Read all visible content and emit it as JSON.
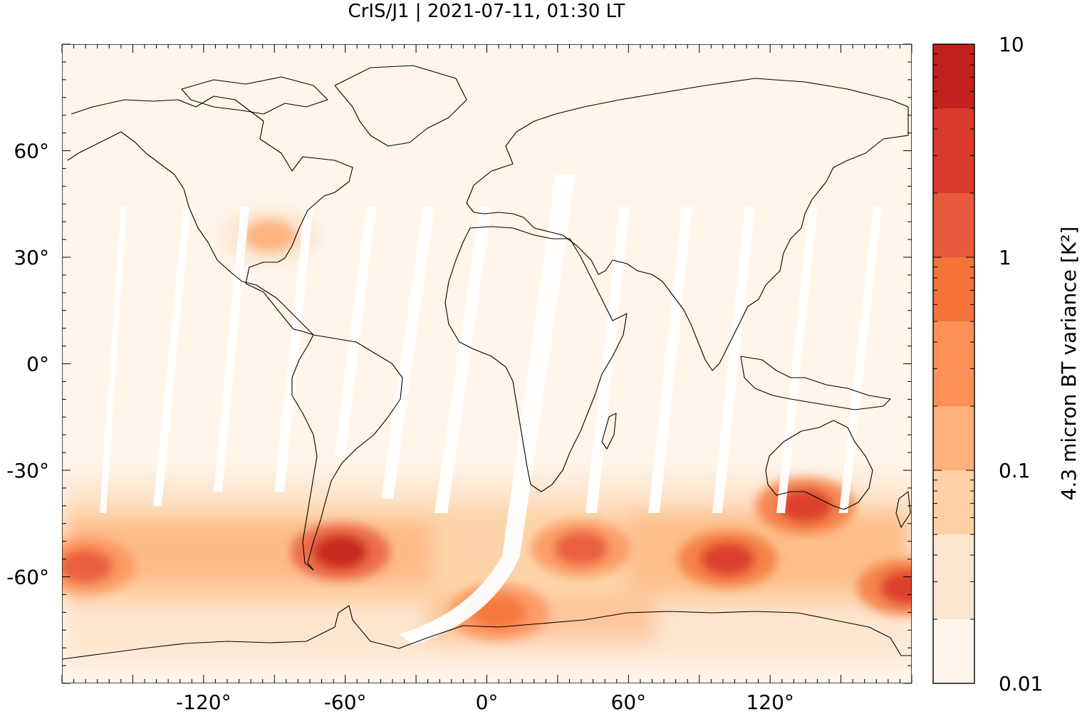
{
  "chart_data": {
    "type": "heatmap",
    "title": "CrIS/J1 | 2021-07-11, 01:30 LT",
    "projection": "equirectangular",
    "xlim": [
      -180,
      180
    ],
    "ylim": [
      -90,
      90
    ],
    "x_ticks": [
      -120,
      -60,
      0,
      60,
      120
    ],
    "x_tick_labels": [
      "-120°",
      "-60°",
      "0°",
      "60°",
      "120°"
    ],
    "y_ticks": [
      60,
      30,
      0,
      -30,
      -60
    ],
    "y_tick_labels": [
      "60°",
      "30°",
      "0°",
      "-30°",
      "-60°"
    ],
    "colorbar": {
      "label": "4.3 micron BT variance [K²]",
      "scale": "log",
      "range": [
        0.01,
        10
      ],
      "tick_values": [
        10,
        1,
        0.1,
        0.01
      ],
      "tick_labels": [
        "10",
        "1",
        "0.1",
        "0.01"
      ],
      "levels": [
        0.01,
        0.02,
        0.05,
        0.1,
        0.2,
        0.5,
        1,
        2,
        5,
        10
      ],
      "colors": [
        "#fff5eb",
        "#fde6cf",
        "#fdd1a4",
        "#fdb07a",
        "#fc9057",
        "#f4743a",
        "#e85a3c",
        "#d93a2b",
        "#c3211b",
        "#990000"
      ]
    },
    "background_color": "#fff5eb",
    "grid": false,
    "hotspots": [
      {
        "region": "Southern Andes / Patagonia",
        "lon": -62,
        "lat": -53,
        "variance": 6
      },
      {
        "region": "South Indian Ocean",
        "lon": 102,
        "lat": -55,
        "variance": 3
      },
      {
        "region": "Southern Australia",
        "lon": 135,
        "lat": -40,
        "variance": 2
      },
      {
        "region": "South Pacific",
        "lon": -170,
        "lat": -57,
        "variance": 1.5
      },
      {
        "region": "Southwest Pacific",
        "lon": 178,
        "lat": -63,
        "variance": 2
      },
      {
        "region": "Southern Ocean near Africa",
        "lon": 40,
        "lat": -52,
        "variance": 1
      },
      {
        "region": "Antarctic coast Atlantic",
        "lon": 5,
        "lat": -70,
        "variance": 0.8
      },
      {
        "region": "Eastern United States",
        "lon": -92,
        "lat": 36,
        "variance": 0.15
      }
    ]
  }
}
